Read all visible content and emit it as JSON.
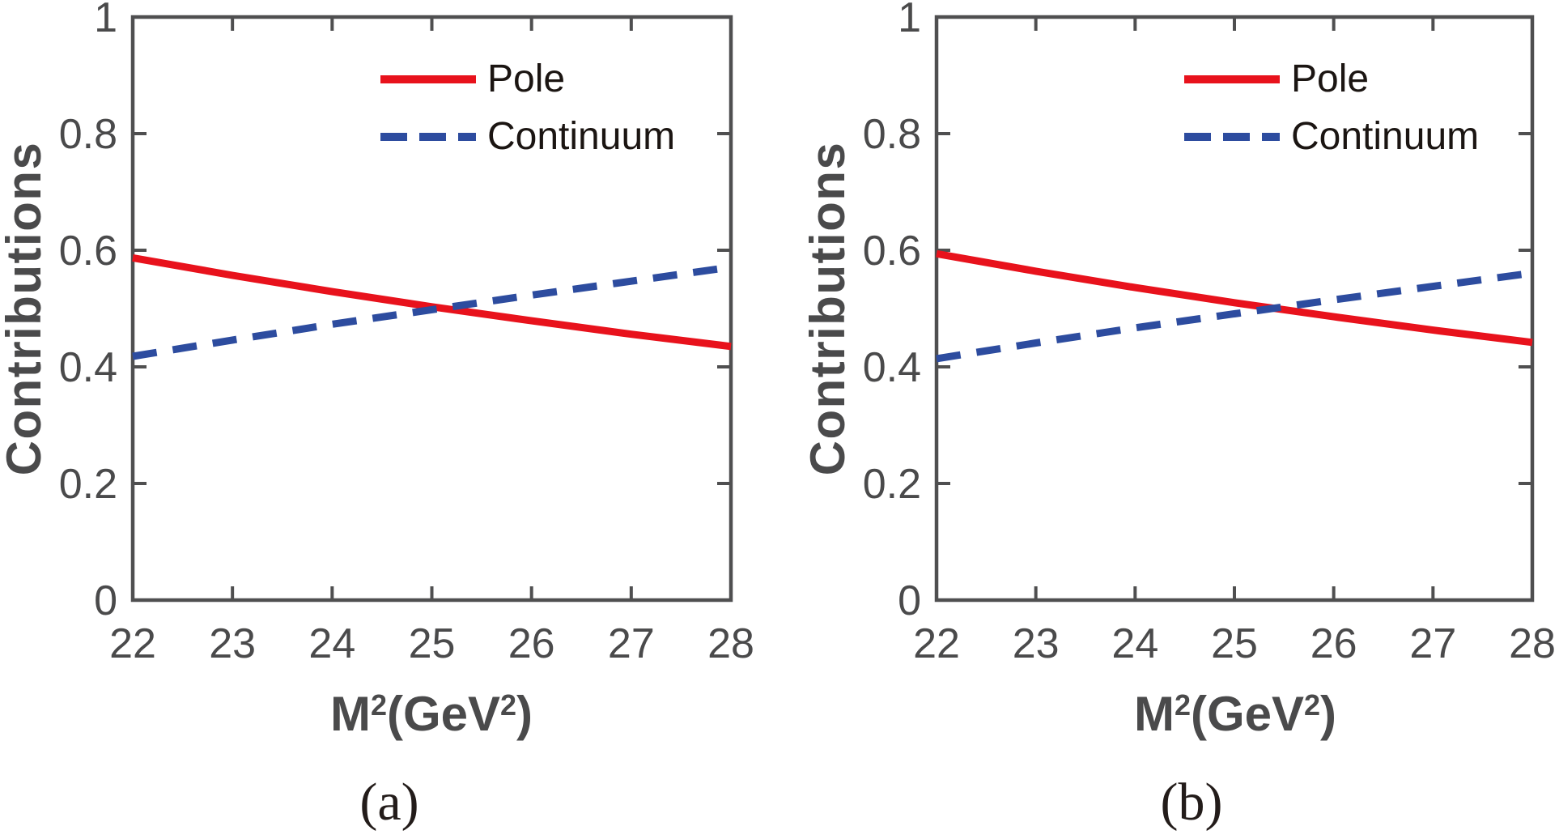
{
  "figure": {
    "background": "#ffffff",
    "axis_color": "#4f4f50",
    "tick_label_color": "#4a4a4b",
    "axis_label_color": "#4a4a4b",
    "caption_color": "#231c1a",
    "legend_text_color": "#1b1512",
    "pole_color": "#e8121c",
    "continuum_color": "#2d4c9f"
  },
  "chart_data": [
    {
      "type": "line",
      "panel": "a",
      "caption": "(a)",
      "xlabel": "M^2(GeV^2)",
      "ylabel": "Contributions",
      "xlim": [
        22,
        28
      ],
      "ylim": [
        0,
        1
      ],
      "xticks": [
        22,
        23,
        24,
        25,
        26,
        27,
        28
      ],
      "yticks": [
        0,
        0.2,
        0.4,
        0.6,
        0.8,
        1
      ],
      "ytick_labels": [
        "0",
        "0.2",
        "0.4",
        "0.6",
        "0.8",
        "1"
      ],
      "grid": false,
      "legend_position": "top-right-inside",
      "x": [
        22,
        23,
        24,
        25,
        26,
        27,
        28
      ],
      "series": [
        {
          "name": "Pole",
          "color": "#e8121c",
          "style": "solid",
          "values": [
            0.587,
            0.557,
            0.529,
            0.503,
            0.479,
            0.456,
            0.435
          ]
        },
        {
          "name": "Continuum",
          "color": "#2d4c9f",
          "style": "dashed",
          "values": [
            0.418,
            0.446,
            0.473,
            0.498,
            0.523,
            0.547,
            0.571
          ]
        }
      ]
    },
    {
      "type": "line",
      "panel": "b",
      "caption": "(b)",
      "xlabel": "M^2(GeV^2)",
      "ylabel": "Contributions",
      "xlim": [
        22,
        28
      ],
      "ylim": [
        0,
        1
      ],
      "xticks": [
        22,
        23,
        24,
        25,
        26,
        27,
        28
      ],
      "yticks": [
        0,
        0.2,
        0.4,
        0.6,
        0.8,
        1
      ],
      "ytick_labels": [
        "0",
        "0.2",
        "0.4",
        "0.6",
        "0.8",
        "1"
      ],
      "grid": false,
      "legend_position": "top-right-inside",
      "x": [
        22,
        23,
        24,
        25,
        26,
        27,
        28
      ],
      "series": [
        {
          "name": "Pole",
          "color": "#e8121c",
          "style": "solid",
          "values": [
            0.594,
            0.564,
            0.536,
            0.51,
            0.486,
            0.463,
            0.442
          ]
        },
        {
          "name": "Continuum",
          "color": "#2d4c9f",
          "style": "dashed",
          "values": [
            0.414,
            0.441,
            0.467,
            0.491,
            0.515,
            0.538,
            0.561
          ]
        }
      ]
    }
  ]
}
